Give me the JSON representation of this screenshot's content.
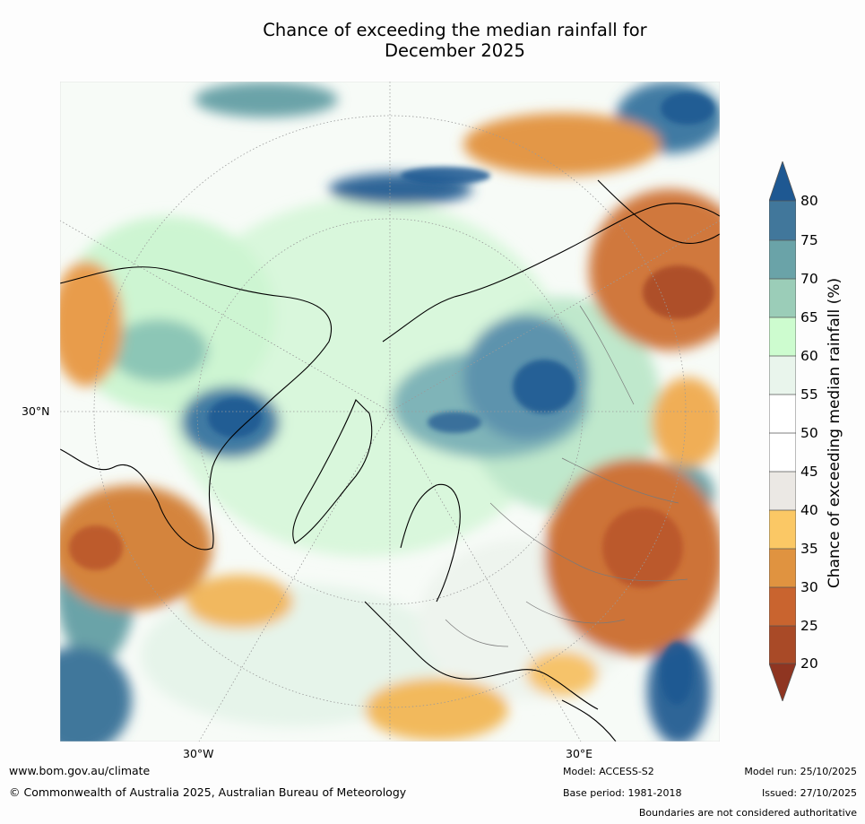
{
  "title_line1": "Chance of exceeding the median rainfall for",
  "title_line2": "December 2025",
  "map": {
    "lat_label": "30°N",
    "lon_labels": [
      "30°W",
      "30°E"
    ]
  },
  "colorbar": {
    "label": "Chance of exceeding median rainfall (%)",
    "ticks": [
      "80",
      "75",
      "70",
      "65",
      "60",
      "55",
      "50",
      "45",
      "40",
      "35",
      "30",
      "25",
      "20"
    ],
    "colors": {
      "above_80": "#1e5892",
      "75_80": "#41779b",
      "70_75": "#6aa3a8",
      "65_70": "#9bcdb8",
      "60_65": "#cdfccf",
      "55_60": "#e9f5ec",
      "50_55": "#ffffff",
      "45_50": "#ffffff",
      "40_45": "#ebe8e4",
      "35_40": "#fbc865",
      "30_35": "#e09340",
      "25_30": "#c9642f",
      "20_25": "#a94a27",
      "below_20": "#8f3521"
    }
  },
  "footer": {
    "url": "www.bom.gov.au/climate",
    "copyright": "© Commonwealth of Australia 2025, Australian Bureau of Meteorology",
    "model": "Model: ACCESS-S2",
    "base_period": "Base period: 1981-2018",
    "model_run": "Model run: 25/10/2025",
    "issued": "Issued: 27/10/2025",
    "disclaimer": "Boundaries are not considered authoritative"
  }
}
